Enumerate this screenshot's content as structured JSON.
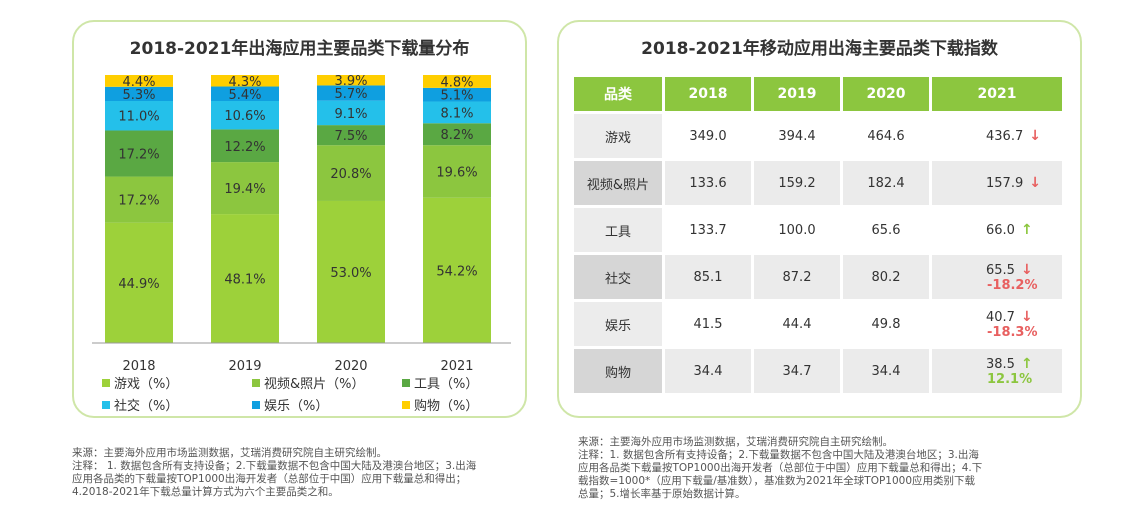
{
  "left": {
    "title": "2018-2021年出海应用主要品类下载量分布"
  },
  "chart_data": [
    {
      "type": "bar",
      "stacked": true,
      "title": "2018-2021年出海应用主要品类下载量分布",
      "categories": [
        "2018",
        "2019",
        "2020",
        "2021"
      ],
      "ylim": [
        0,
        100
      ],
      "series": [
        {
          "name": "游戏（%）",
          "color": "#9dd13a",
          "values": [
            44.9,
            48.1,
            53.0,
            54.2
          ],
          "labels": [
            "44.9%",
            "48.1%",
            "53.0%",
            "54.2%"
          ]
        },
        {
          "name": "视频&照片（%）",
          "color": "#8cc63f",
          "values": [
            17.2,
            19.4,
            20.8,
            19.6
          ],
          "labels": [
            "17.2%",
            "19.4%",
            "20.8%",
            "19.6%"
          ]
        },
        {
          "name": "工具（%）",
          "color": "#5aa843",
          "values": [
            17.2,
            12.2,
            7.5,
            8.2
          ],
          "labels": [
            "17.2%",
            "12.2%",
            "7.5%",
            "8.2%"
          ]
        },
        {
          "name": "社交（%）",
          "color": "#24c0ea",
          "values": [
            11.0,
            10.6,
            9.1,
            8.1
          ],
          "labels": [
            "11.0%",
            "10.6%",
            "9.1%",
            "8.1%"
          ]
        },
        {
          "name": "娱乐（%）",
          "color": "#0f9fe0",
          "values": [
            5.3,
            5.4,
            5.7,
            5.1
          ],
          "labels": [
            "5.3%",
            "5.4%",
            "5.7%",
            "5.1%"
          ]
        },
        {
          "name": "购物（%）",
          "color": "#ffce00",
          "values": [
            4.4,
            4.3,
            3.9,
            4.8
          ],
          "labels": [
            "4.4%",
            "4.3%",
            "3.9%",
            "4.8%"
          ]
        }
      ],
      "legend_position": "bottom"
    },
    {
      "type": "table",
      "title": "2018-2021年移动应用出海主要品类下载指数",
      "columns": [
        "品类",
        "2018",
        "2019",
        "2020",
        "2021"
      ],
      "rows": [
        {
          "category": "游戏",
          "values": [
            "349.0",
            "394.4",
            "464.6",
            "436.7"
          ],
          "trend": "down",
          "change": ""
        },
        {
          "category": "视频&照片",
          "values": [
            "133.6",
            "159.2",
            "182.4",
            "157.9"
          ],
          "trend": "down",
          "change": ""
        },
        {
          "category": "工具",
          "values": [
            "133.7",
            "100.0",
            "65.6",
            "66.0"
          ],
          "trend": "up",
          "change": ""
        },
        {
          "category": "社交",
          "values": [
            "85.1",
            "87.2",
            "80.2",
            "65.5"
          ],
          "trend": "down",
          "change": "-18.2%"
        },
        {
          "category": "娱乐",
          "values": [
            "41.5",
            "44.4",
            "49.8",
            "40.7"
          ],
          "trend": "down",
          "change": "-18.3%"
        },
        {
          "category": "购物",
          "values": [
            "34.4",
            "34.7",
            "34.4",
            "38.5"
          ],
          "trend": "up",
          "change": "12.1%"
        }
      ]
    }
  ],
  "right": {
    "title": "2018-2021年移动应用出海主要品类下载指数"
  },
  "notes": {
    "left": [
      "来源：主要海外应用市场监测数据，艾瑞消费研究院自主研究绘制。",
      "注释： 1. 数据包含所有支持设备；2.下载量数据不包含中国大陆及港澳台地区；3.出海",
      "应用各品类的下载量按TOP1000出海开发者（总部位于中国）应用下载量总和得出；",
      "4.2018-2021年下载总量计算方式为六个主要品类之和。"
    ],
    "right": [
      "来源：主要海外应用市场监测数据，艾瑞消费研究院自主研究绘制。",
      "注释：1. 数据包含所有支持设备；2.下载量数据不包含中国大陆及港澳台地区；3.出海",
      "应用各品类下载量按TOP1000出海开发者（总部位于中国）应用下载量总和得出；4.下",
      "载指数=1000*（应用下载量/基准数），基准数为2021年全球TOP1000应用类别下载",
      "总量；5.增长率基于原始数据计算。"
    ]
  },
  "icons": {
    "down": "↓",
    "up": "↑"
  }
}
